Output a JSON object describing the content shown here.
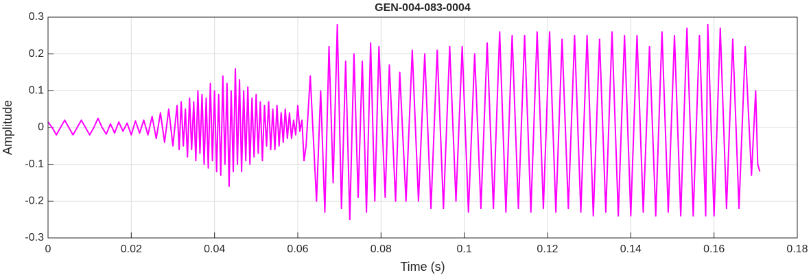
{
  "chart_data": {
    "type": "line",
    "title": "GEN-004-083-0004",
    "x_label": "Time (s)",
    "y_label": "Amplitude",
    "color": "#ff00ff",
    "grid": true,
    "xlim": [
      0,
      0.18
    ],
    "xticks": [
      0,
      0.02,
      0.04,
      0.06,
      0.08,
      0.1,
      0.12,
      0.14,
      0.16,
      0.18
    ],
    "ylim": [
      -0.3,
      0.3
    ],
    "yticks": [
      -0.3,
      -0.2,
      -0.1,
      0,
      0.1,
      0.2,
      0.3
    ],
    "x": [
      0,
      0.001,
      0.002,
      0.003,
      0.004,
      0.005,
      0.006,
      0.007,
      0.008,
      0.009,
      0.01,
      0.011,
      0.012,
      0.013,
      0.014,
      0.015,
      0.016,
      0.017,
      0.018,
      0.019,
      0.02,
      0.021,
      0.022,
      0.023,
      0.024,
      0.025,
      0.026,
      0.027,
      0.028,
      0.029,
      0.03,
      0.031,
      0.0315,
      0.032,
      0.0325,
      0.033,
      0.0335,
      0.034,
      0.0345,
      0.035,
      0.0355,
      0.036,
      0.0365,
      0.037,
      0.0375,
      0.038,
      0.0385,
      0.039,
      0.0395,
      0.04,
      0.0405,
      0.041,
      0.0415,
      0.042,
      0.0425,
      0.043,
      0.0435,
      0.044,
      0.0445,
      0.045,
      0.0455,
      0.046,
      0.0465,
      0.047,
      0.0475,
      0.048,
      0.0485,
      0.049,
      0.0495,
      0.05,
      0.0505,
      0.051,
      0.0515,
      0.052,
      0.0525,
      0.053,
      0.0535,
      0.054,
      0.0545,
      0.055,
      0.0555,
      0.056,
      0.0565,
      0.057,
      0.0575,
      0.058,
      0.0585,
      0.059,
      0.0595,
      0.06,
      0.0605,
      0.061,
      0.0615,
      0.062,
      0.063,
      0.0645,
      0.0655,
      0.0665,
      0.0675,
      0.0685,
      0.0695,
      0.0705,
      0.0715,
      0.0725,
      0.0735,
      0.0745,
      0.0755,
      0.0765,
      0.0775,
      0.0785,
      0.0795,
      0.081,
      0.082,
      0.0835,
      0.0845,
      0.086,
      0.0875,
      0.089,
      0.0905,
      0.092,
      0.0935,
      0.095,
      0.0965,
      0.098,
      0.0995,
      0.101,
      0.1025,
      0.104,
      0.1055,
      0.107,
      0.1085,
      0.11,
      0.1115,
      0.113,
      0.1145,
      0.116,
      0.1175,
      0.119,
      0.1205,
      0.122,
      0.1235,
      0.125,
      0.1265,
      0.128,
      0.1295,
      0.131,
      0.1325,
      0.134,
      0.1355,
      0.137,
      0.1385,
      0.14,
      0.1415,
      0.143,
      0.1445,
      0.146,
      0.1475,
      0.149,
      0.1505,
      0.152,
      0.1535,
      0.155,
      0.1565,
      0.158,
      0.1585,
      0.16,
      0.1615,
      0.163,
      0.1645,
      0.166,
      0.1675,
      0.169,
      0.17,
      0.1705,
      0.171
    ],
    "values": [
      0.015,
      0,
      -0.02,
      0,
      0.02,
      0,
      -0.02,
      0,
      0.02,
      0,
      -0.02,
      0,
      0.025,
      0,
      -0.018,
      0.01,
      -0.015,
      0.015,
      -0.01,
      0.012,
      -0.02,
      0.018,
      -0.015,
      0.02,
      -0.02,
      0.03,
      -0.03,
      0.04,
      -0.04,
      0.05,
      -0.05,
      0.06,
      -0.06,
      0.07,
      -0.05,
      0.05,
      -0.08,
      0.08,
      -0.06,
      0.07,
      -0.09,
      0.1,
      -0.07,
      0.09,
      -0.1,
      0.08,
      -0.11,
      0.12,
      -0.09,
      0.1,
      -0.12,
      0.09,
      -0.13,
      0.14,
      -0.1,
      0.12,
      -0.16,
      0.1,
      -0.12,
      0.16,
      -0.1,
      0.13,
      -0.12,
      0.1,
      -0.09,
      0.11,
      -0.1,
      0.08,
      -0.08,
      0.09,
      -0.07,
      0.07,
      -0.09,
      0.06,
      -0.05,
      0.07,
      -0.06,
      0.05,
      -0.06,
      0.06,
      -0.05,
      0.04,
      -0.04,
      0.05,
      -0.03,
      0.04,
      -0.03,
      0.02,
      -0.02,
      0.06,
      -0.01,
      0.02,
      -0.09,
      -0.05,
      0.14,
      -0.2,
      0.1,
      -0.23,
      0.22,
      -0.15,
      0.28,
      -0.22,
      0.18,
      -0.25,
      0.2,
      -0.19,
      0.18,
      -0.23,
      0.23,
      -0.2,
      0.22,
      -0.19,
      0.17,
      -0.2,
      0.15,
      -0.2,
      0.21,
      -0.2,
      0.2,
      -0.22,
      0.21,
      -0.22,
      0.22,
      -0.2,
      0.22,
      -0.23,
      0.2,
      -0.22,
      0.23,
      -0.22,
      0.26,
      -0.23,
      0.25,
      -0.22,
      0.25,
      -0.23,
      0.26,
      -0.22,
      0.26,
      -0.23,
      0.24,
      -0.22,
      0.25,
      -0.23,
      0.25,
      -0.24,
      0.24,
      -0.23,
      0.26,
      -0.24,
      0.25,
      -0.24,
      0.25,
      -0.23,
      0.22,
      -0.24,
      0.26,
      -0.23,
      0.25,
      -0.24,
      0.27,
      -0.24,
      0.25,
      -0.24,
      0.28,
      -0.24,
      0.27,
      -0.22,
      0.24,
      -0.22,
      0.22,
      -0.13,
      0.1,
      -0.1,
      -0.12
    ]
  }
}
